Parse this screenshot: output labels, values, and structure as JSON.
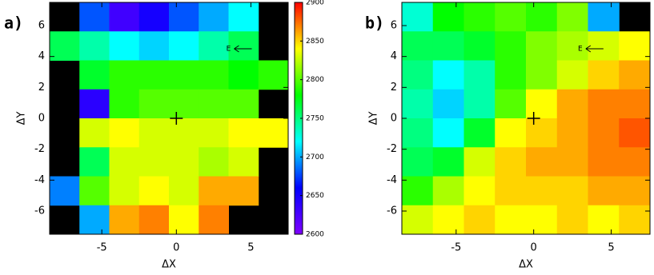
{
  "chart_data": [
    {
      "type": "heatmap",
      "panel_label": "a)",
      "xlabel": "ΔX",
      "ylabel": "ΔY",
      "x": [
        -7.5,
        -5.5,
        -3.5,
        -1.5,
        0.5,
        2.5,
        4.5,
        6.5
      ],
      "y": [
        6.5625,
        4.6875,
        2.8125,
        0.9375,
        -0.9375,
        -2.8125,
        -4.6875,
        -6.5625
      ],
      "values": [
        [
          null,
          2680,
          2630,
          2650,
          2680,
          2700,
          2720,
          null
        ],
        [
          2760,
          2740,
          2720,
          2710,
          2720,
          2740,
          2760,
          null
        ],
        [
          null,
          2770,
          2790,
          2790,
          2790,
          2790,
          2780,
          2790
        ],
        [
          null,
          2640,
          2790,
          2800,
          2800,
          2800,
          2800,
          null
        ],
        [
          null,
          2830,
          2840,
          2830,
          2830,
          2830,
          2840,
          2840
        ],
        [
          null,
          2760,
          2830,
          2830,
          2830,
          2820,
          2830,
          null
        ],
        [
          2690,
          2800,
          2830,
          2840,
          2830,
          2860,
          2860,
          null
        ],
        [
          null,
          2700,
          2860,
          2870,
          2840,
          2870,
          null,
          null
        ]
      ],
      "xlim": [
        -8.5,
        7.5
      ],
      "ylim": [
        -7.5,
        7.5
      ],
      "xticks": [
        -5,
        0,
        5
      ],
      "yticks": [
        -6,
        -4,
        -2,
        0,
        2,
        4,
        6
      ],
      "zlim": [
        2600,
        2900
      ],
      "zticks": [
        2600,
        2650,
        2700,
        2750,
        2800,
        2850,
        2900
      ],
      "colormap": [
        "#7f00ff",
        "#0000ff",
        "#00ffff",
        "#00ff00",
        "#ffff00",
        "#ff0000"
      ],
      "background": "#000000",
      "marker": {
        "x": 0,
        "y": 0
      },
      "annotation": {
        "text": "E",
        "x": 3.5,
        "y": 4.5
      }
    },
    {
      "type": "heatmap",
      "panel_label": "b)",
      "xlabel": "ΔX",
      "ylabel": "ΔY",
      "x": [
        -7.5,
        -5.5,
        -3.5,
        -1.5,
        0.5,
        2.5,
        4.5,
        6.5
      ],
      "y": [
        6.5625,
        4.6875,
        2.8125,
        0.9375,
        -0.9375,
        -2.8125,
        -4.6875,
        -6.5625
      ],
      "values": [
        [
          2730,
          2780,
          2790,
          2800,
          2790,
          2810,
          2700,
          null
        ],
        [
          2760,
          2760,
          2770,
          2790,
          2810,
          2820,
          2830,
          2840
        ],
        [
          2750,
          2720,
          2740,
          2790,
          2810,
          2830,
          2850,
          2860
        ],
        [
          2740,
          2710,
          2740,
          2800,
          2840,
          2860,
          2870,
          2870
        ],
        [
          2750,
          2720,
          2770,
          2840,
          2850,
          2860,
          2870,
          2880
        ],
        [
          2760,
          2770,
          2830,
          2850,
          2860,
          2860,
          2870,
          2870
        ],
        [
          2790,
          2820,
          2840,
          2850,
          2850,
          2850,
          2860,
          2860
        ],
        [
          2830,
          2840,
          2850,
          2840,
          2840,
          2850,
          2840,
          2850
        ]
      ],
      "xlim": [
        -8.5,
        7.5
      ],
      "ylim": [
        -7.5,
        7.5
      ],
      "xticks": [
        -5,
        0,
        5
      ],
      "yticks": [
        -6,
        -4,
        -2,
        0,
        2,
        4,
        6
      ],
      "zlim": [
        2600,
        2900
      ],
      "colormap": [
        "#7f00ff",
        "#0000ff",
        "#00ffff",
        "#00ff00",
        "#ffff00",
        "#ff0000"
      ],
      "background": "#000000",
      "marker": {
        "x": 0,
        "y": 0
      },
      "annotation": {
        "text": "E",
        "x": 3,
        "y": 4.5
      }
    }
  ]
}
